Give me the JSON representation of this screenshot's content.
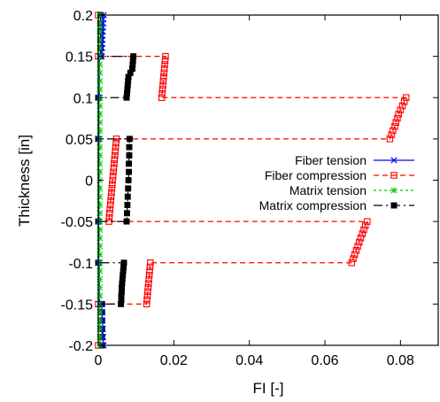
{
  "chart_data": {
    "type": "line",
    "xlabel": "FI [-]",
    "ylabel": "Thickness [in]",
    "xlim": [
      0,
      0.09
    ],
    "ylim": [
      -0.2,
      0.2
    ],
    "x_ticks": [
      0,
      0.02,
      0.04,
      0.06,
      0.08
    ],
    "x_tick_labels": [
      "0",
      "0.02",
      "0.04",
      "0.06",
      "0.08"
    ],
    "y_ticks": [
      -0.2,
      -0.15,
      -0.1,
      -0.05,
      0,
      0.05,
      0.1,
      0.15,
      0.2
    ],
    "y_tick_labels": [
      "-0.2",
      "-0.15",
      "-0.1",
      "-0.05",
      "0",
      "0.05",
      "0.1",
      "0.15",
      "0.2"
    ],
    "grid": false,
    "legend_position": "right",
    "series": [
      {
        "name": "Fiber tension",
        "color": "#0000ff",
        "linestyle": "solid",
        "marker": "x",
        "points": [
          [
            0.0014,
            0.2
          ],
          [
            0.0013,
            0.195
          ],
          [
            0.0013,
            0.19
          ],
          [
            0.0012,
            0.185
          ],
          [
            0.0012,
            0.18
          ],
          [
            0.0011,
            0.175
          ],
          [
            0.0011,
            0.17
          ],
          [
            0.001,
            0.165
          ],
          [
            0.001,
            0.16
          ],
          [
            0.0009,
            0.155
          ],
          [
            0.0009,
            0.15
          ],
          [
            0.0003,
            0.15
          ],
          [
            0.0003,
            0.1
          ],
          [
            0.0001,
            0.1
          ],
          [
            0.0001,
            0.05
          ],
          [
            0.0001,
            -0.05
          ],
          [
            0.0001,
            -0.1
          ],
          [
            0.0003,
            -0.1
          ],
          [
            0.0003,
            -0.15
          ],
          [
            0.0009,
            -0.15
          ],
          [
            0.001,
            -0.16
          ],
          [
            0.0011,
            -0.17
          ],
          [
            0.0012,
            -0.18
          ],
          [
            0.0013,
            -0.19
          ],
          [
            0.0014,
            -0.2
          ]
        ]
      },
      {
        "name": "Fiber compression",
        "color": "#ff0000",
        "linestyle": "dashed",
        "marker": "square-open",
        "points": [
          [
            0.0,
            0.2
          ],
          [
            0.0,
            0.15
          ],
          [
            0.0178,
            0.15
          ],
          [
            0.0177,
            0.145
          ],
          [
            0.0176,
            0.14
          ],
          [
            0.0175,
            0.135
          ],
          [
            0.0174,
            0.13
          ],
          [
            0.0173,
            0.125
          ],
          [
            0.0172,
            0.12
          ],
          [
            0.0171,
            0.115
          ],
          [
            0.017,
            0.11
          ],
          [
            0.0169,
            0.105
          ],
          [
            0.0168,
            0.1
          ],
          [
            0.0815,
            0.1
          ],
          [
            0.081,
            0.095
          ],
          [
            0.0805,
            0.09
          ],
          [
            0.08,
            0.085
          ],
          [
            0.0795,
            0.08
          ],
          [
            0.0792,
            0.075
          ],
          [
            0.0788,
            0.07
          ],
          [
            0.0785,
            0.065
          ],
          [
            0.078,
            0.06
          ],
          [
            0.0776,
            0.055
          ],
          [
            0.0772,
            0.05
          ],
          [
            0.0048,
            0.05
          ],
          [
            0.0047,
            0.045
          ],
          [
            0.0046,
            0.04
          ],
          [
            0.0045,
            0.035
          ],
          [
            0.0044,
            0.03
          ],
          [
            0.0043,
            0.025
          ],
          [
            0.0042,
            0.02
          ],
          [
            0.0041,
            0.015
          ],
          [
            0.004,
            0.01
          ],
          [
            0.0039,
            0.005
          ],
          [
            0.0038,
            0.0
          ],
          [
            0.0037,
            -0.005
          ],
          [
            0.0036,
            -0.01
          ],
          [
            0.0035,
            -0.015
          ],
          [
            0.0034,
            -0.02
          ],
          [
            0.0033,
            -0.025
          ],
          [
            0.0032,
            -0.03
          ],
          [
            0.0031,
            -0.035
          ],
          [
            0.003,
            -0.04
          ],
          [
            0.0029,
            -0.045
          ],
          [
            0.0028,
            -0.05
          ],
          [
            0.0712,
            -0.05
          ],
          [
            0.0707,
            -0.055
          ],
          [
            0.0703,
            -0.06
          ],
          [
            0.0699,
            -0.065
          ],
          [
            0.0695,
            -0.07
          ],
          [
            0.0691,
            -0.075
          ],
          [
            0.0687,
            -0.08
          ],
          [
            0.0683,
            -0.085
          ],
          [
            0.0679,
            -0.09
          ],
          [
            0.0675,
            -0.095
          ],
          [
            0.0671,
            -0.1
          ],
          [
            0.0138,
            -0.1
          ],
          [
            0.0137,
            -0.105
          ],
          [
            0.0136,
            -0.11
          ],
          [
            0.0135,
            -0.115
          ],
          [
            0.0134,
            -0.12
          ],
          [
            0.0133,
            -0.125
          ],
          [
            0.0132,
            -0.13
          ],
          [
            0.0131,
            -0.135
          ],
          [
            0.013,
            -0.14
          ],
          [
            0.0129,
            -0.145
          ],
          [
            0.0128,
            -0.15
          ],
          [
            0.0,
            -0.15
          ],
          [
            0.0,
            -0.2
          ]
        ]
      },
      {
        "name": "Matrix tension",
        "color": "#00cc00",
        "linestyle": "dotted",
        "marker": "asterisk",
        "points": [
          [
            0.0004,
            0.2
          ],
          [
            0.0004,
            0.19
          ],
          [
            0.0004,
            0.18
          ],
          [
            0.0004,
            0.17
          ],
          [
            0.0004,
            0.16
          ],
          [
            0.0004,
            0.15
          ],
          [
            0.0004,
            0.14
          ],
          [
            0.0004,
            0.13
          ],
          [
            0.0004,
            0.12
          ],
          [
            0.0004,
            0.11
          ],
          [
            0.0004,
            0.1
          ],
          [
            0.0004,
            0.09
          ],
          [
            0.0004,
            0.08
          ],
          [
            0.0004,
            0.07
          ],
          [
            0.0004,
            0.06
          ],
          [
            0.0004,
            0.05
          ],
          [
            0.0004,
            0.04
          ],
          [
            0.0004,
            0.03
          ],
          [
            0.0004,
            0.02
          ],
          [
            0.0004,
            0.01
          ],
          [
            0.0004,
            0.0
          ],
          [
            0.0004,
            -0.01
          ],
          [
            0.0004,
            -0.02
          ],
          [
            0.0004,
            -0.03
          ],
          [
            0.0004,
            -0.04
          ],
          [
            0.0004,
            -0.05
          ],
          [
            0.0004,
            -0.06
          ],
          [
            0.0004,
            -0.07
          ],
          [
            0.0004,
            -0.08
          ],
          [
            0.0004,
            -0.09
          ],
          [
            0.0004,
            -0.1
          ],
          [
            0.0004,
            -0.11
          ],
          [
            0.0004,
            -0.12
          ],
          [
            0.0004,
            -0.13
          ],
          [
            0.0004,
            -0.14
          ],
          [
            0.0004,
            -0.15
          ],
          [
            0.0004,
            -0.16
          ],
          [
            0.0004,
            -0.17
          ],
          [
            0.0004,
            -0.18
          ],
          [
            0.0004,
            -0.19
          ],
          [
            0.0004,
            -0.2
          ]
        ]
      },
      {
        "name": "Matrix compression",
        "color": "#000000",
        "linestyle": "dashdot",
        "marker": "square-filled",
        "points": [
          [
            0.0006,
            0.2
          ],
          [
            0.0006,
            0.19
          ],
          [
            0.0006,
            0.18
          ],
          [
            0.0006,
            0.17
          ],
          [
            0.0006,
            0.16
          ],
          [
            0.0006,
            0.15
          ],
          [
            0.0093,
            0.15
          ],
          [
            0.0092,
            0.145
          ],
          [
            0.0091,
            0.14
          ],
          [
            0.009,
            0.135
          ],
          [
            0.0085,
            0.13
          ],
          [
            0.008,
            0.125
          ],
          [
            0.0079,
            0.12
          ],
          [
            0.0078,
            0.115
          ],
          [
            0.0077,
            0.11
          ],
          [
            0.0076,
            0.105
          ],
          [
            0.0075,
            0.1
          ],
          [
            0.0,
            0.1
          ],
          [
            0.0,
            0.05
          ],
          [
            0.0083,
            0.05
          ],
          [
            0.0082,
            0.04
          ],
          [
            0.0082,
            0.03
          ],
          [
            0.0081,
            0.02
          ],
          [
            0.0081,
            0.01
          ],
          [
            0.008,
            0.0
          ],
          [
            0.0079,
            -0.01
          ],
          [
            0.0078,
            -0.02
          ],
          [
            0.0077,
            -0.03
          ],
          [
            0.0076,
            -0.04
          ],
          [
            0.0075,
            -0.05
          ],
          [
            0.0,
            -0.05
          ],
          [
            0.0,
            -0.1
          ],
          [
            0.0068,
            -0.1
          ],
          [
            0.0067,
            -0.105
          ],
          [
            0.0066,
            -0.11
          ],
          [
            0.0065,
            -0.115
          ],
          [
            0.0064,
            -0.12
          ],
          [
            0.0063,
            -0.125
          ],
          [
            0.0062,
            -0.13
          ],
          [
            0.0062,
            -0.135
          ],
          [
            0.0061,
            -0.14
          ],
          [
            0.0061,
            -0.145
          ],
          [
            0.006,
            -0.15
          ],
          [
            0.001,
            -0.15
          ],
          [
            0.001,
            -0.16
          ],
          [
            0.001,
            -0.17
          ],
          [
            0.001,
            -0.18
          ],
          [
            0.001,
            -0.19
          ],
          [
            0.001,
            -0.2
          ]
        ]
      }
    ]
  }
}
